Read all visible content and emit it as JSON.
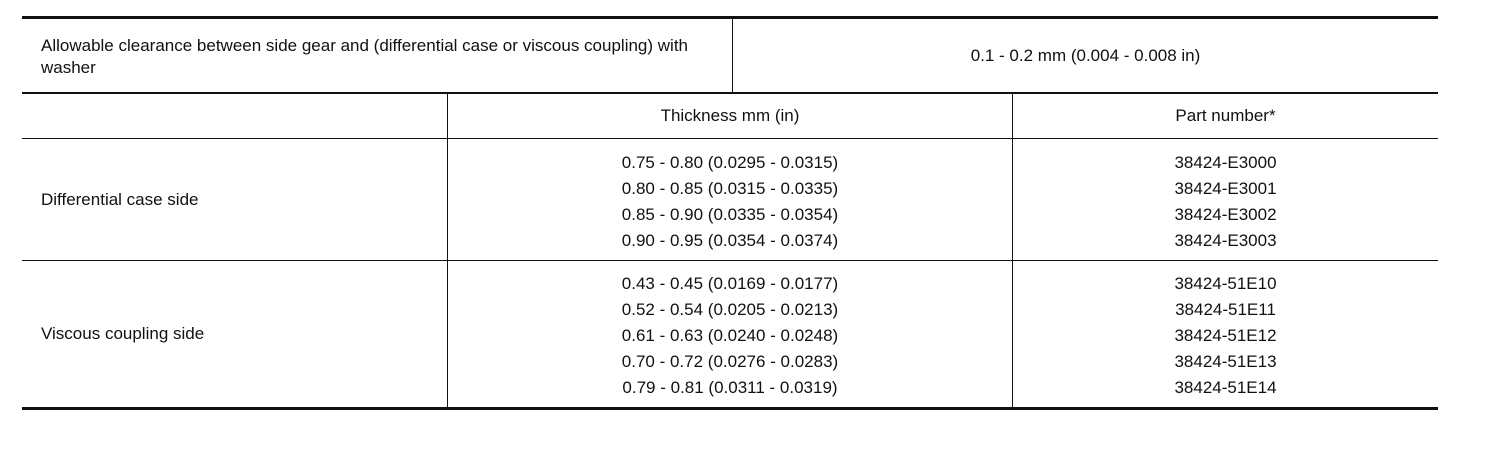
{
  "clearance": {
    "label": "Allowable clearance between side gear and (differential case or viscous coupling) with washer",
    "value": "0.1 - 0.2 mm (0.004 - 0.008 in)"
  },
  "header": {
    "thickness": "Thickness mm (in)",
    "part_number": "Part number*"
  },
  "groups": [
    {
      "label": "Differential case side",
      "rows": [
        {
          "thickness": "0.75 - 0.80 (0.0295 - 0.0315)",
          "part": "38424-E3000"
        },
        {
          "thickness": "0.80 - 0.85 (0.0315 - 0.0335)",
          "part": "38424-E3001"
        },
        {
          "thickness": "0.85 - 0.90 (0.0335 - 0.0354)",
          "part": "38424-E3002"
        },
        {
          "thickness": "0.90 - 0.95 (0.0354 - 0.0374)",
          "part": "38424-E3003"
        }
      ]
    },
    {
      "label": "Viscous coupling side",
      "rows": [
        {
          "thickness": "0.43 - 0.45 (0.0169 - 0.0177)",
          "part": "38424-51E10"
        },
        {
          "thickness": "0.52 - 0.54 (0.0205 - 0.0213)",
          "part": "38424-51E11"
        },
        {
          "thickness": "0.61 - 0.63 (0.0240 - 0.0248)",
          "part": "38424-51E12"
        },
        {
          "thickness": "0.70 - 0.72 (0.0276 - 0.0283)",
          "part": "38424-51E13"
        },
        {
          "thickness": "0.79 - 0.81 (0.0311 - 0.0319)",
          "part": "38424-51E14"
        }
      ]
    }
  ]
}
